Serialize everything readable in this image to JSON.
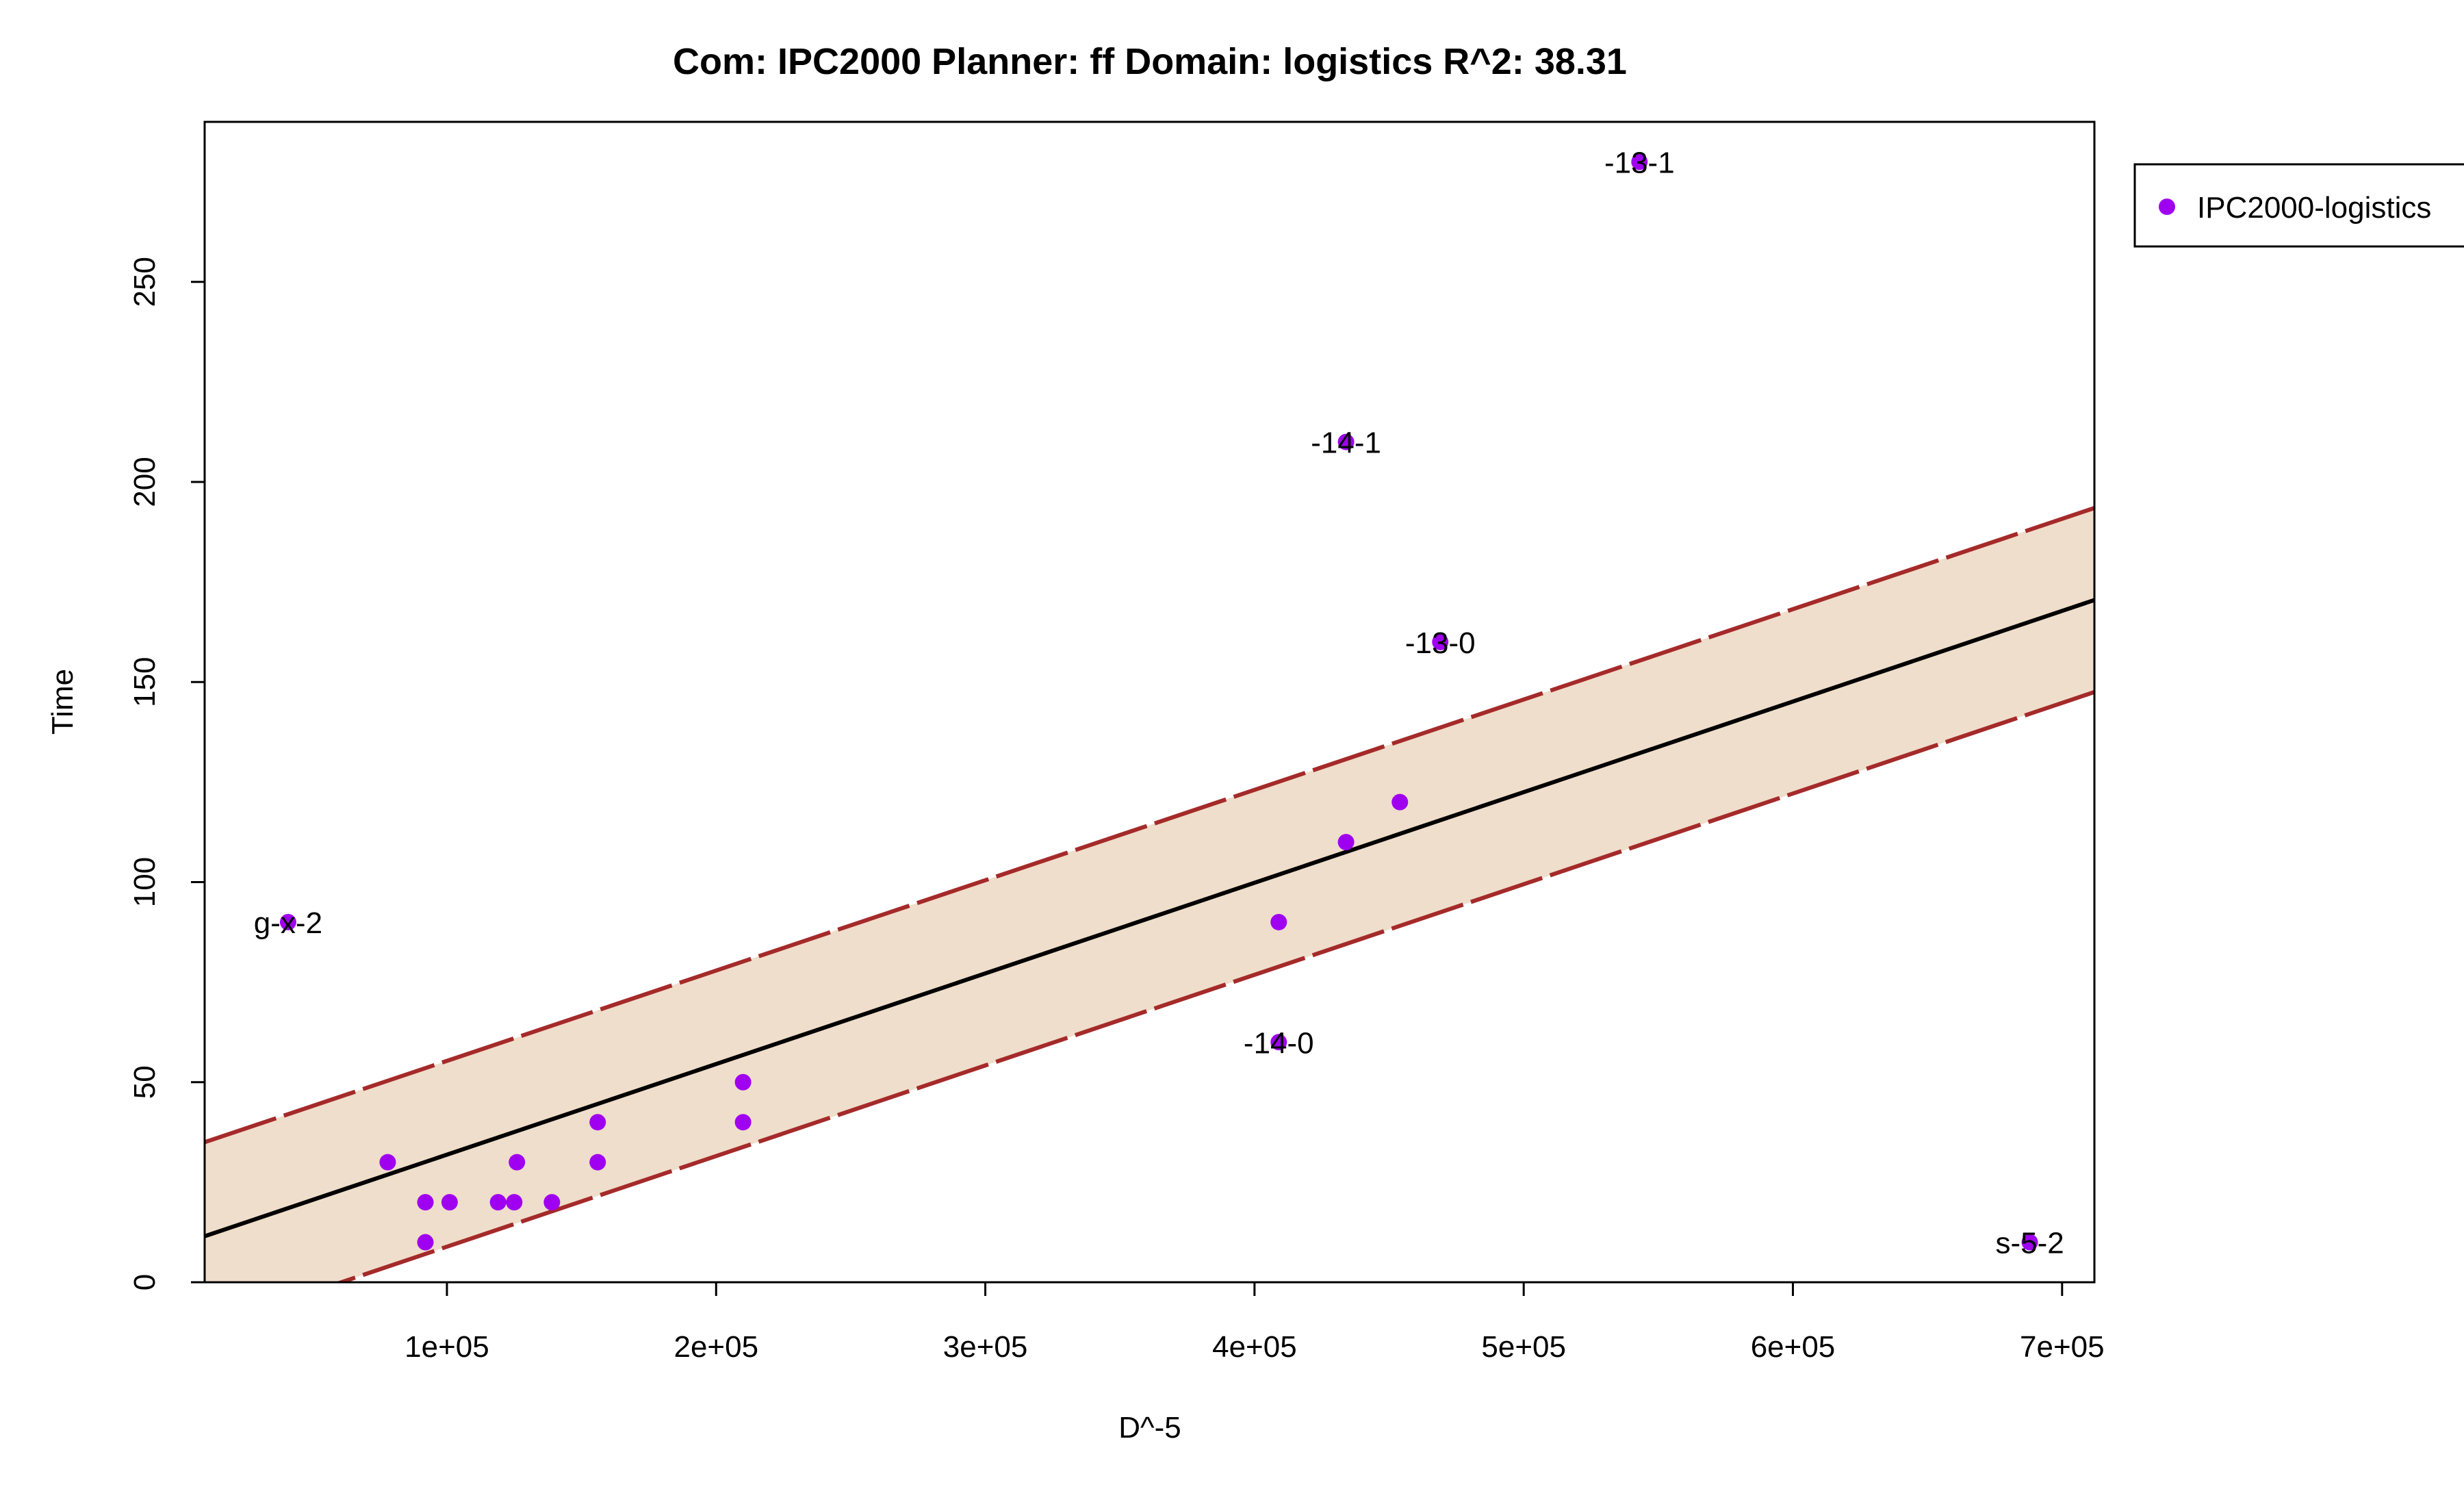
{
  "chart_data": {
    "type": "scatter",
    "title": "Com: IPC2000 Planner: ff Domain: logistics R^2: 38.31",
    "xlabel": "D^-5",
    "ylabel": "Time",
    "xlim": [
      10000,
      712000
    ],
    "ylim": [
      0,
      290
    ],
    "x_ticks": [
      {
        "value": 100000,
        "label": "1e+05"
      },
      {
        "value": 200000,
        "label": "2e+05"
      },
      {
        "value": 300000,
        "label": "3e+05"
      },
      {
        "value": 400000,
        "label": "4e+05"
      },
      {
        "value": 500000,
        "label": "5e+05"
      },
      {
        "value": 600000,
        "label": "6e+05"
      },
      {
        "value": 700000,
        "label": "7e+05"
      }
    ],
    "y_ticks": [
      {
        "value": 0,
        "label": "0"
      },
      {
        "value": 50,
        "label": "50"
      },
      {
        "value": 100,
        "label": "100"
      },
      {
        "value": 150,
        "label": "150"
      },
      {
        "value": 200,
        "label": "200"
      },
      {
        "value": 250,
        "label": "250"
      }
    ],
    "grid": false,
    "legend": {
      "position": "top-right-outside",
      "entries": [
        {
          "label": "IPC2000-logistics",
          "color": "#a000f0"
        }
      ]
    },
    "series": [
      {
        "name": "IPC2000-logistics",
        "color": "#a000f0",
        "points": [
          {
            "x": 41000,
            "y": 90
          },
          {
            "x": 78000,
            "y": 30
          },
          {
            "x": 92000,
            "y": 20
          },
          {
            "x": 92000,
            "y": 10
          },
          {
            "x": 101000,
            "y": 20
          },
          {
            "x": 119000,
            "y": 20
          },
          {
            "x": 125000,
            "y": 20
          },
          {
            "x": 126000,
            "y": 30
          },
          {
            "x": 139000,
            "y": 20
          },
          {
            "x": 156000,
            "y": 40
          },
          {
            "x": 156000,
            "y": 30
          },
          {
            "x": 210000,
            "y": 50
          },
          {
            "x": 210000,
            "y": 40
          },
          {
            "x": 409000,
            "y": 90
          },
          {
            "x": 409000,
            "y": 60
          },
          {
            "x": 434000,
            "y": 110
          },
          {
            "x": 434000,
            "y": 210
          },
          {
            "x": 454000,
            "y": 120
          },
          {
            "x": 469000,
            "y": 160
          },
          {
            "x": 543000,
            "y": 280
          },
          {
            "x": 688000,
            "y": 10
          }
        ]
      }
    ],
    "annotations": [
      {
        "x": 41000,
        "y": 90,
        "text": "g-x-2"
      },
      {
        "x": 409000,
        "y": 60,
        "text": "-14-0"
      },
      {
        "x": 434000,
        "y": 210,
        "text": "-14-1"
      },
      {
        "x": 469000,
        "y": 160,
        "text": "-13-0"
      },
      {
        "x": 543000,
        "y": 280,
        "text": "-13-1"
      },
      {
        "x": 688000,
        "y": 10,
        "text": "s-5-2"
      }
    ],
    "regression": {
      "color": "#000000",
      "fit": {
        "x0": 10000,
        "y0": 11.5,
        "x1": 712000,
        "y1": 170.5
      },
      "upper": {
        "x0": 10000,
        "y0": 35,
        "x1": 712000,
        "y1": 193.5
      },
      "lower": {
        "x0": 10000,
        "y0": -11.5,
        "x1": 712000,
        "y1": 147.5
      },
      "band_color": "#efdecb",
      "bound_color": "#a52a2a"
    }
  }
}
